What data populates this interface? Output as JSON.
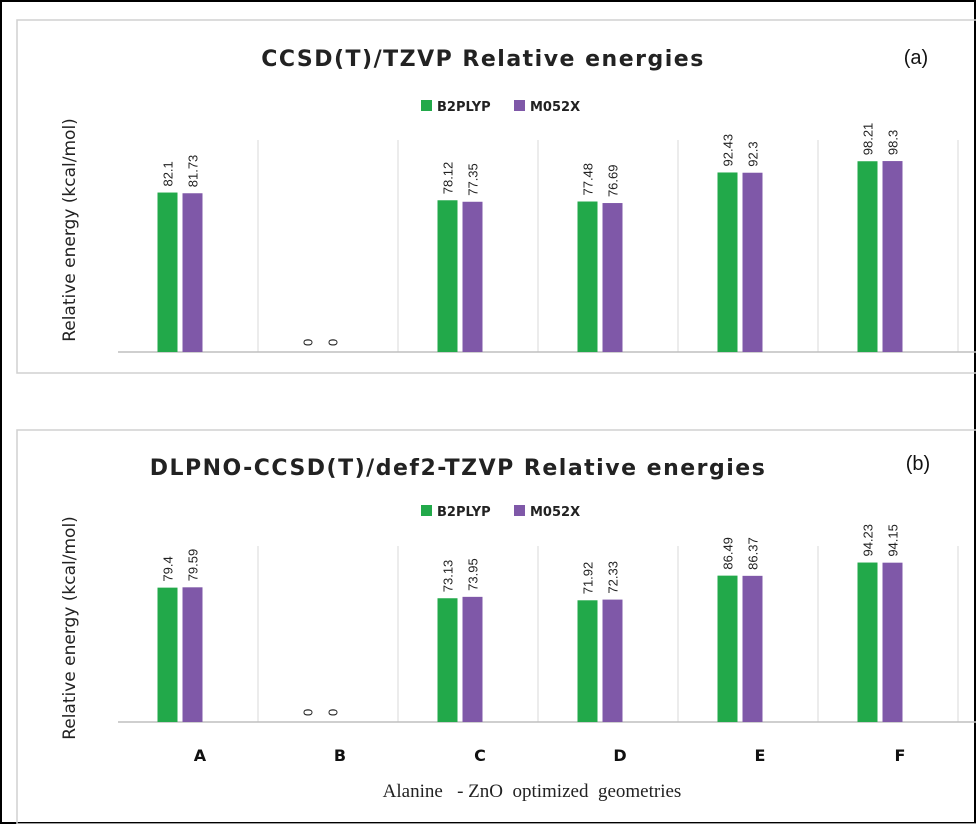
{
  "colors": {
    "B2PLYP": "#22a94a",
    "M052X": "#7f58a8",
    "grid": "#d9d9d9",
    "axis": "#bfbfbf"
  },
  "x_axis_label": "Alanine   - ZnO  optimized  geometries",
  "chart_data": [
    {
      "type": "bar",
      "title": "CCSD(T)/TZVP Relative energies",
      "panel_label": "(a)",
      "ylabel": "Relative energy (kcal/mol)",
      "categories": [
        "A",
        "B",
        "C",
        "D",
        "E",
        "F"
      ],
      "series": [
        {
          "name": "B2PLYP",
          "values": [
            82.1,
            0,
            78.12,
            77.48,
            92.43,
            98.21
          ],
          "labels": [
            "82.1",
            "0",
            "78.12",
            "77.48",
            "92.43",
            "98.21"
          ]
        },
        {
          "name": "M052X",
          "values": [
            81.73,
            0,
            77.35,
            76.69,
            92.3,
            98.3
          ],
          "labels": [
            "81.73",
            "0",
            "77.35",
            "76.69",
            "92.3",
            "98.3"
          ]
        }
      ],
      "ylim": [
        0,
        104
      ],
      "legend": "top-center",
      "grid": "vertical separators"
    },
    {
      "type": "bar",
      "title": "DLPNO-CCSD(T)/def2-TZVP Relative energies",
      "panel_label": "(b)",
      "ylabel": "Relative energy (kcal/mol)",
      "categories": [
        "A",
        "B",
        "C",
        "D",
        "E",
        "F"
      ],
      "series": [
        {
          "name": "B2PLYP",
          "values": [
            79.4,
            0,
            73.13,
            71.92,
            86.49,
            94.23
          ],
          "labels": [
            "79.4",
            "0",
            "73.13",
            "71.92",
            "86.49",
            "94.23"
          ]
        },
        {
          "name": "M052X",
          "values": [
            79.59,
            0,
            73.95,
            72.33,
            86.37,
            94.15
          ],
          "labels": [
            "79.59",
            "0",
            "73.95",
            "72.33",
            "86.37",
            "94.15"
          ]
        }
      ],
      "ylim": [
        0,
        104
      ],
      "legend": "top-center",
      "grid": "vertical separators"
    }
  ]
}
